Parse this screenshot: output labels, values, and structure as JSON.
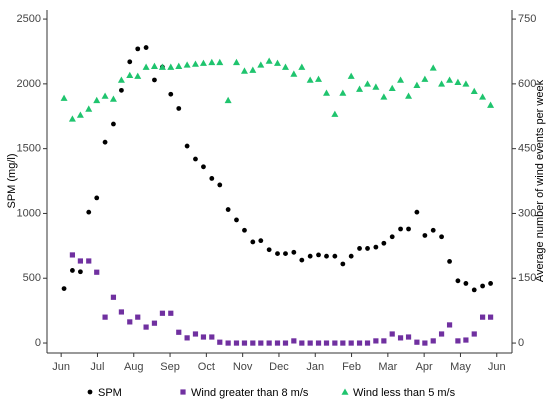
{
  "chart_data": {
    "type": "scatter",
    "y_label": "SPM (mg/l)",
    "y2_label": "Average number of wind events per week",
    "xlim": [
      -0.39,
      12.42
    ],
    "xticks": [
      {
        "value": 0,
        "label": "Jun"
      },
      {
        "value": 1,
        "label": "Jul"
      },
      {
        "value": 2,
        "label": "Aug"
      },
      {
        "value": 3,
        "label": "Sep"
      },
      {
        "value": 4,
        "label": "Oct"
      },
      {
        "value": 5,
        "label": "Nov"
      },
      {
        "value": 6,
        "label": "Dec"
      },
      {
        "value": 7,
        "label": "Jan"
      },
      {
        "value": 8,
        "label": "Feb"
      },
      {
        "value": 9,
        "label": "Mar"
      },
      {
        "value": 10,
        "label": "Apr"
      },
      {
        "value": 11,
        "label": "May"
      },
      {
        "value": 12,
        "label": "Jun"
      }
    ],
    "ylim": [
      -77,
      2570
    ],
    "yticks": [
      0,
      500,
      1000,
      1500,
      2000,
      2500
    ],
    "y2lim": [
      -23,
      771
    ],
    "y2ticks": [
      0,
      150,
      300,
      450,
      600,
      750
    ],
    "x": [
      0.08,
      0.31,
      0.53,
      0.76,
      0.98,
      1.21,
      1.44,
      1.66,
      1.89,
      2.11,
      2.34,
      2.57,
      2.79,
      3.02,
      3.24,
      3.47,
      3.7,
      3.92,
      4.15,
      4.37,
      4.6,
      4.83,
      5.05,
      5.28,
      5.5,
      5.73,
      5.96,
      6.18,
      6.41,
      6.63,
      6.86,
      7.09,
      7.31,
      7.54,
      7.76,
      7.99,
      8.22,
      8.44,
      8.67,
      8.89,
      9.12,
      9.35,
      9.57,
      9.8,
      10.02,
      10.25,
      10.48,
      10.7,
      10.93,
      11.15,
      11.38,
      11.61,
      11.83
    ],
    "series": [
      {
        "name": "SPM",
        "color": "#000000",
        "marker": "circle",
        "values": [
          420,
          560,
          550,
          1010,
          1120,
          1550,
          1690,
          1950,
          2170,
          2270,
          2280,
          2030,
          2130,
          1920,
          1810,
          1520,
          1420,
          1360,
          1270,
          1220,
          1030,
          950,
          870,
          780,
          790,
          720,
          690,
          690,
          700,
          640,
          670,
          680,
          670,
          670,
          610,
          670,
          730,
          730,
          740,
          770,
          820,
          880,
          880,
          1010,
          830,
          870,
          820,
          630,
          480,
          460,
          410,
          440,
          460
        ]
      },
      {
        "name": "Wind greater than 8 m/s",
        "color": "#7030a0",
        "marker": "square",
        "axis": "y2",
        "values": [
          null,
          204,
          190,
          190,
          164,
          60,
          106,
          72,
          49,
          60,
          37,
          46,
          69,
          69,
          25,
          12,
          21,
          14,
          14,
          2,
          0,
          0,
          0,
          0,
          0,
          0,
          0,
          0,
          5,
          0,
          0,
          0,
          0,
          0,
          0,
          0,
          0,
          0,
          5,
          5,
          21,
          12,
          14,
          2,
          0,
          5,
          21,
          42,
          5,
          7,
          21,
          60,
          60
        ]
      },
      {
        "name": "Wind less than 5 m/s",
        "color": "#1fc46e",
        "marker": "triangle",
        "axis": "y2",
        "values": [
          567,
          519,
          528,
          542,
          562,
          572,
          565,
          609,
          620,
          618,
          639,
          641,
          639,
          639,
          641,
          644,
          646,
          648,
          650,
          650,
          562,
          650,
          630,
          632,
          644,
          653,
          648,
          639,
          623,
          639,
          609,
          611,
          579,
          530,
          579,
          618,
          588,
          600,
          593,
          570,
          590,
          609,
          572,
          597,
          611,
          637,
          600,
          609,
          604,
          600,
          583,
          570,
          551
        ]
      }
    ]
  }
}
